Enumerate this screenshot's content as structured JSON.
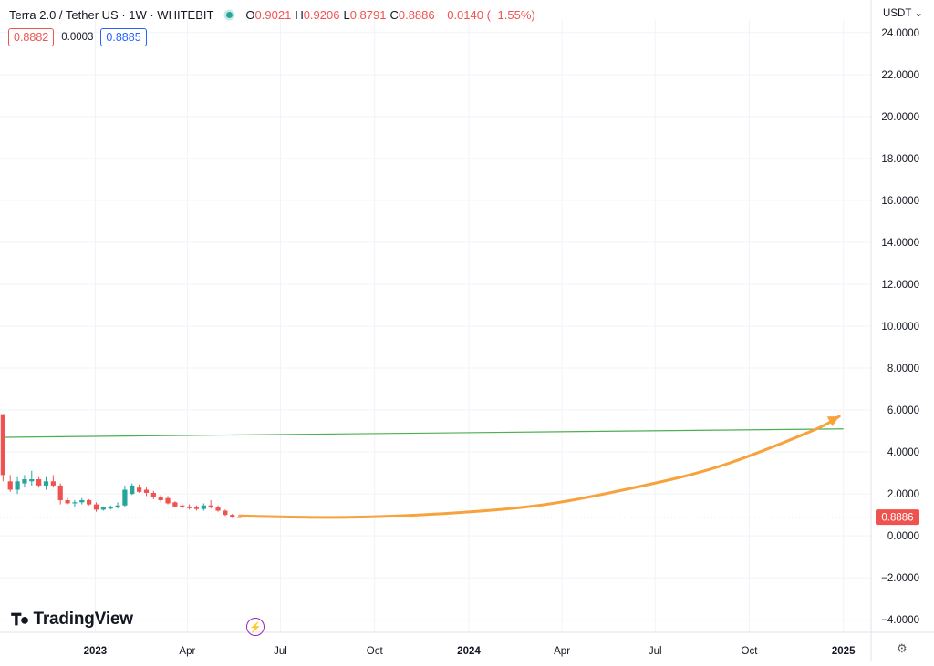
{
  "header": {
    "symbol": "Terra 2.0 / Tether US · 1W · WHITEBIT",
    "open_label": "O",
    "open": "0.9021",
    "high_label": "H",
    "high": "0.9206",
    "low_label": "L",
    "low": "0.8791",
    "close_label": "C",
    "close": "0.8886",
    "change": "−0.0140 (−1.55%)",
    "sell_price": "0.8882",
    "spread": "0.0003",
    "buy_price": "0.8885"
  },
  "currency_selector": "USDT",
  "logo_text": "TradingView",
  "icons": {
    "status": "market-open-dot",
    "logo": "tradingview-logo-icon",
    "bolt": "lightning-icon",
    "settings": "gear-icon"
  },
  "colors": {
    "up": "#26a69a",
    "down": "#ef5350",
    "trendline": "#4caf50",
    "projection_arrow": "#f7a23c",
    "price_line": "#ef5350"
  },
  "chart_data": {
    "type": "candlestick",
    "y_axis": {
      "ticks": [
        "24.0000",
        "22.0000",
        "20.0000",
        "18.0000",
        "16.0000",
        "14.0000",
        "12.0000",
        "10.0000",
        "8.0000",
        "6.0000",
        "4.0000",
        "2.0000",
        "0.0000",
        "−2.0000",
        "−4.0000"
      ],
      "ylim": [
        -4.6,
        24.6
      ]
    },
    "x_axis": {
      "ticks": [
        "2023",
        "Apr",
        "Jul",
        "Oct",
        "2024",
        "Apr",
        "Jul",
        "Oct",
        "2025"
      ],
      "tick_dates": [
        "2023-01-01",
        "2023-04-01",
        "2023-07-01",
        "2023-10-01",
        "2024-01-01",
        "2024-04-01",
        "2024-07-01",
        "2024-10-01",
        "2025-01-01"
      ],
      "xlim": [
        "2022-09-30",
        "2025-01-28"
      ]
    },
    "last_price_label": "0.8886",
    "last_price": 0.8886,
    "candles": [
      {
        "date": "2022-10-03",
        "open": 5.8,
        "high": 5.8,
        "low": 2.6,
        "close": 2.9
      },
      {
        "date": "2022-10-10",
        "open": 2.6,
        "high": 2.9,
        "low": 2.1,
        "close": 2.2
      },
      {
        "date": "2022-10-17",
        "open": 2.2,
        "high": 2.8,
        "low": 2.0,
        "close": 2.6
      },
      {
        "date": "2022-10-24",
        "open": 2.5,
        "high": 2.9,
        "low": 2.3,
        "close": 2.7
      },
      {
        "date": "2022-10-31",
        "open": 2.6,
        "high": 3.1,
        "low": 2.4,
        "close": 2.7
      },
      {
        "date": "2022-11-07",
        "open": 2.7,
        "high": 2.8,
        "low": 2.3,
        "close": 2.4
      },
      {
        "date": "2022-11-14",
        "open": 2.4,
        "high": 2.8,
        "low": 2.2,
        "close": 2.6
      },
      {
        "date": "2022-11-21",
        "open": 2.6,
        "high": 2.9,
        "low": 2.3,
        "close": 2.4
      },
      {
        "date": "2022-11-28",
        "open": 2.4,
        "high": 2.5,
        "low": 1.5,
        "close": 1.7
      },
      {
        "date": "2022-12-05",
        "open": 1.7,
        "high": 1.8,
        "low": 1.5,
        "close": 1.55
      },
      {
        "date": "2022-12-12",
        "open": 1.55,
        "high": 1.7,
        "low": 1.4,
        "close": 1.6
      },
      {
        "date": "2022-12-19",
        "open": 1.6,
        "high": 1.8,
        "low": 1.5,
        "close": 1.7
      },
      {
        "date": "2022-12-26",
        "open": 1.7,
        "high": 1.75,
        "low": 1.45,
        "close": 1.5
      },
      {
        "date": "2023-01-02",
        "open": 1.5,
        "high": 1.6,
        "low": 1.15,
        "close": 1.25
      },
      {
        "date": "2023-01-09",
        "open": 1.25,
        "high": 1.4,
        "low": 1.2,
        "close": 1.35
      },
      {
        "date": "2023-01-16",
        "open": 1.3,
        "high": 1.45,
        "low": 1.25,
        "close": 1.38
      },
      {
        "date": "2023-01-23",
        "open": 1.35,
        "high": 1.6,
        "low": 1.3,
        "close": 1.45
      },
      {
        "date": "2023-01-30",
        "open": 1.45,
        "high": 2.4,
        "low": 1.4,
        "close": 2.2
      },
      {
        "date": "2023-02-06",
        "open": 2.0,
        "high": 2.5,
        "low": 1.95,
        "close": 2.4
      },
      {
        "date": "2023-02-13",
        "open": 2.3,
        "high": 2.45,
        "low": 2.05,
        "close": 2.1
      },
      {
        "date": "2023-02-20",
        "open": 2.2,
        "high": 2.3,
        "low": 1.9,
        "close": 2.05
      },
      {
        "date": "2023-02-27",
        "open": 2.05,
        "high": 2.15,
        "low": 1.75,
        "close": 1.85
      },
      {
        "date": "2023-03-06",
        "open": 1.85,
        "high": 1.95,
        "low": 1.6,
        "close": 1.7
      },
      {
        "date": "2023-03-13",
        "open": 1.8,
        "high": 1.9,
        "low": 1.5,
        "close": 1.55
      },
      {
        "date": "2023-03-20",
        "open": 1.6,
        "high": 1.65,
        "low": 1.35,
        "close": 1.4
      },
      {
        "date": "2023-03-27",
        "open": 1.45,
        "high": 1.55,
        "low": 1.3,
        "close": 1.38
      },
      {
        "date": "2023-04-03",
        "open": 1.4,
        "high": 1.5,
        "low": 1.25,
        "close": 1.32
      },
      {
        "date": "2023-04-10",
        "open": 1.35,
        "high": 1.45,
        "low": 1.2,
        "close": 1.28
      },
      {
        "date": "2023-04-17",
        "open": 1.28,
        "high": 1.55,
        "low": 1.2,
        "close": 1.45
      },
      {
        "date": "2023-04-24",
        "open": 1.45,
        "high": 1.7,
        "low": 1.3,
        "close": 1.35
      },
      {
        "date": "2023-05-01",
        "open": 1.35,
        "high": 1.45,
        "low": 1.15,
        "close": 1.2
      },
      {
        "date": "2023-05-08",
        "open": 1.2,
        "high": 1.25,
        "low": 0.95,
        "close": 1.0
      },
      {
        "date": "2023-05-15",
        "open": 1.0,
        "high": 1.05,
        "low": 0.85,
        "close": 0.9
      },
      {
        "date": "2023-05-22",
        "open": 0.9021,
        "high": 0.9206,
        "low": 0.8791,
        "close": 0.8886
      }
    ],
    "trendline": {
      "start": {
        "date": "2022-10-03",
        "value": 4.7
      },
      "end": {
        "date": "2025-01-01",
        "value": 5.1
      }
    },
    "projection_arrow": {
      "points": [
        {
          "date": "2023-05-22",
          "value": 0.95
        },
        {
          "date": "2023-08-20",
          "value": 0.88
        },
        {
          "date": "2023-11-15",
          "value": 1.0
        },
        {
          "date": "2024-03-01",
          "value": 1.4
        },
        {
          "date": "2024-06-01",
          "value": 2.2
        },
        {
          "date": "2024-09-01",
          "value": 3.3
        },
        {
          "date": "2024-12-01",
          "value": 5.0
        },
        {
          "date": "2024-12-28",
          "value": 5.7
        }
      ]
    }
  }
}
